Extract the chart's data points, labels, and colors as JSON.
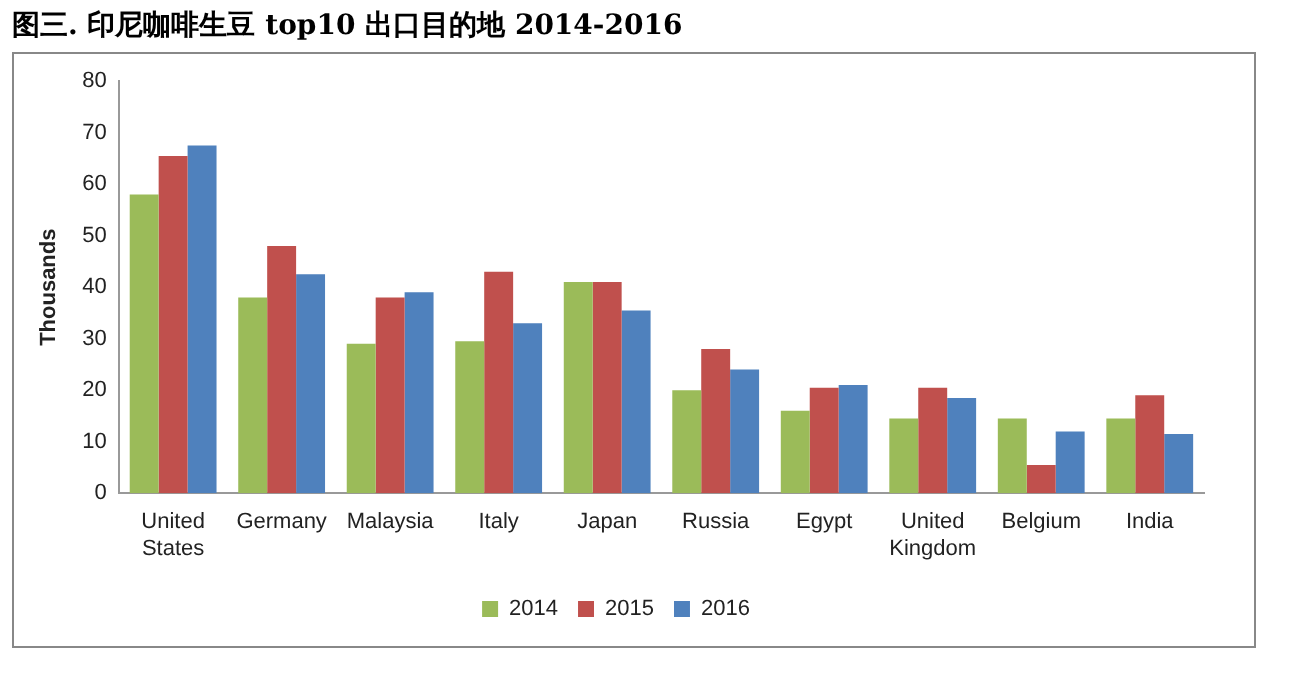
{
  "chart_data": {
    "type": "bar",
    "title": "图三. 印尼咖啡生豆 top10 出口目的地  2014-2016",
    "ylabel": "Thousands",
    "categories": [
      "United States",
      "Germany",
      "Malaysia",
      "Italy",
      "Japan",
      "Russia",
      "Egypt",
      "United Kingdom",
      "Belgium",
      "India"
    ],
    "series": [
      {
        "name": "2014",
        "color": "#9bbb59",
        "values": [
          58,
          38,
          29,
          29.5,
          41,
          20,
          16,
          14.5,
          14.5,
          14.5
        ]
      },
      {
        "name": "2015",
        "color": "#c0504d",
        "values": [
          65.5,
          48,
          38,
          43,
          41,
          28,
          20.5,
          20.5,
          5.5,
          19
        ]
      },
      {
        "name": "2016",
        "color": "#4f81bd",
        "values": [
          67.5,
          42.5,
          39,
          33,
          35.5,
          24,
          21,
          18.5,
          12,
          11.5
        ]
      }
    ],
    "ylim": [
      0,
      80
    ],
    "yticks": [
      0,
      10,
      20,
      30,
      40,
      50,
      60,
      70,
      80
    ],
    "grid": false,
    "legend": "bottom"
  }
}
